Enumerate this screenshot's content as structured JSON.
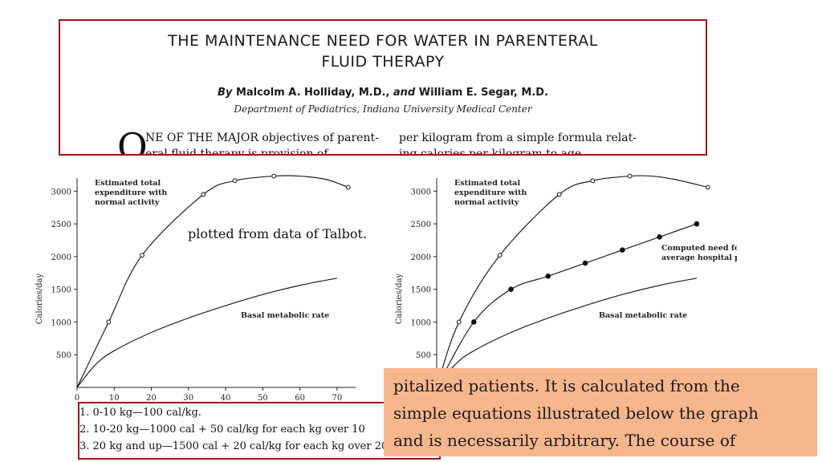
{
  "header": {
    "title_line1": "THE MAINTENANCE NEED FOR WATER IN PARENTERAL",
    "title_line2": "FLUID THERAPY",
    "authors_by": "By",
    "author1": "Malcolm A. Holliday, M.D.,",
    "authors_and": "and",
    "author2": "William E. Segar, M.D.",
    "department": "Department of Pediatrics, Indiana University Medical Center",
    "dropcap": "O",
    "left_col_line1_sc": "NE OF THE MAJOR",
    "left_col_line1_rest": "objectives of parent-",
    "left_col_line2": "eral fluid therapy is provision of",
    "right_col_line1": "per kilogram from a simple formula relat-",
    "right_col_line2": "ing calories per kilogram to age."
  },
  "annotation": "plotted from data of Talbot.",
  "formulas": [
    "1.  0-10 kg—100 cal/kg.",
    "2.  10-20 kg—1000 cal + 50 cal/kg for each kg over 10",
    "3.  20 kg and up—1500 cal + 20 cal/kg for each kg over 20"
  ],
  "excerpt": [
    "pitalized patients. It is calculated from the",
    "simple equations illustrated below the graph",
    "and is necessarily arbitrary. The course of"
  ],
  "chart_data": [
    {
      "type": "line",
      "ylabel": "Calories/day",
      "xlim": [
        0,
        75
      ],
      "ylim": [
        0,
        3200
      ],
      "xticks": [
        0,
        10,
        20,
        30,
        40,
        50,
        60,
        70
      ],
      "yticks": [
        500,
        1000,
        1500,
        2000,
        2500,
        3000
      ],
      "series": [
        {
          "name": "Estimated total expenditure with normal activity",
          "markers": "open",
          "x": [
            0,
            8.5,
            17.5,
            34,
            42.5,
            53,
            60,
            67,
            73
          ],
          "y": [
            0,
            1000,
            2020,
            2950,
            3160,
            3230,
            3230,
            3180,
            3060
          ],
          "marker_x": [
            8.5,
            17.5,
            34,
            42.5,
            53,
            73
          ],
          "marker_y": [
            1000,
            2020,
            2950,
            3160,
            3230,
            3060
          ]
        },
        {
          "name": "Basal metabolic rate",
          "markers": "none",
          "x": [
            0,
            5,
            10,
            20,
            30,
            40,
            50,
            60,
            70
          ],
          "y": [
            0,
            350,
            560,
            840,
            1060,
            1250,
            1420,
            1560,
            1670
          ]
        }
      ]
    },
    {
      "type": "line",
      "ylabel": "Calories/day",
      "xlim": [
        0,
        75
      ],
      "ylim": [
        0,
        3200
      ],
      "yticks": [
        500,
        1000,
        1500,
        2000,
        2500,
        3000
      ],
      "series": [
        {
          "name": "Estimated total expenditure with normal activity",
          "markers": "open",
          "x": [
            0,
            6,
            17,
            33,
            42,
            52,
            58,
            64,
            73
          ],
          "y": [
            0,
            1000,
            2020,
            2950,
            3160,
            3230,
            3230,
            3180,
            3060
          ],
          "marker_x": [
            6,
            17,
            33,
            42,
            52,
            73
          ],
          "marker_y": [
            1000,
            2020,
            2950,
            3160,
            3230,
            3060
          ]
        },
        {
          "name": "Computed need for average hospital patient",
          "markers": "filled",
          "x": [
            0,
            10,
            20,
            30,
            40,
            50,
            60,
            70
          ],
          "y": [
            0,
            1000,
            1500,
            1700,
            1900,
            2100,
            2300,
            2500
          ],
          "marker_x": [
            10,
            20,
            30,
            40,
            50,
            60,
            70
          ],
          "marker_y": [
            1000,
            1500,
            1700,
            1900,
            2100,
            2300,
            2500
          ]
        },
        {
          "name": "Basal metabolic rate",
          "markers": "none",
          "x": [
            0,
            5,
            10,
            20,
            30,
            40,
            50,
            60,
            70
          ],
          "y": [
            0,
            350,
            560,
            840,
            1060,
            1250,
            1420,
            1560,
            1670
          ]
        }
      ]
    }
  ],
  "colors": {
    "frame": "#a50f1d",
    "excerpt_bg": "#f7b68c",
    "ink": "#1a1a1a"
  }
}
